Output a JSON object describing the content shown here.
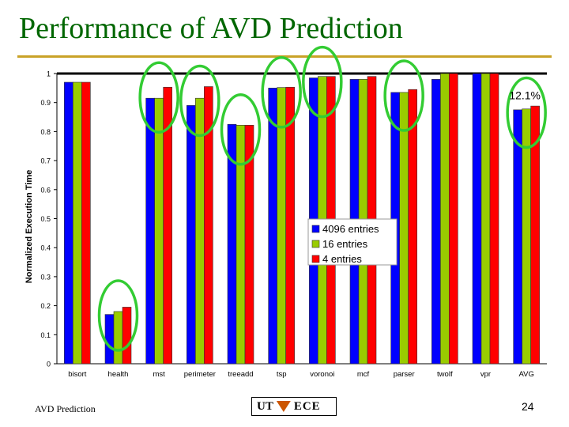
{
  "slide": {
    "title": "Performance of AVD Prediction",
    "footer": "AVD Prediction",
    "page_number": "24",
    "logo_left": "UT",
    "logo_right": "ECE"
  },
  "chart_data": {
    "type": "bar",
    "title": "",
    "xlabel": "",
    "ylabel": "Normalized Execution Time",
    "ylim": [
      0,
      1
    ],
    "yticks": [
      "0",
      "0.1",
      "0.2",
      "0.3",
      "0.4",
      "0.5",
      "0.6",
      "0.7",
      "0.8",
      "0.9",
      "1"
    ],
    "categories": [
      "bisort",
      "health",
      "mst",
      "perimeter",
      "treeadd",
      "tsp",
      "voronoi",
      "mcf",
      "parser",
      "twolf",
      "vpr",
      "AVG"
    ],
    "series": [
      {
        "name": "4096 entries",
        "color": "#0000ff",
        "values": [
          0.97,
          0.17,
          0.915,
          0.89,
          0.825,
          0.95,
          0.985,
          0.98,
          0.935,
          0.98,
          1.0,
          0.875
        ]
      },
      {
        "name": "16 entries",
        "color": "#99cc00",
        "values": [
          0.97,
          0.18,
          0.915,
          0.915,
          0.822,
          0.952,
          0.99,
          0.98,
          0.935,
          1.0,
          1.0,
          0.878
        ]
      },
      {
        "name": "4 entries",
        "color": "#ff0000",
        "values": [
          0.97,
          0.195,
          0.953,
          0.955,
          0.822,
          0.953,
          0.99,
          0.99,
          0.945,
          1.0,
          1.0,
          0.888
        ]
      }
    ],
    "legend_position": "center-right",
    "annotation": "12.1%",
    "highlight_color": "#33cc33",
    "highlighted_categories": [
      "health",
      "mst",
      "perimeter",
      "treeadd",
      "tsp",
      "voronoi",
      "parser",
      "AVG"
    ]
  }
}
